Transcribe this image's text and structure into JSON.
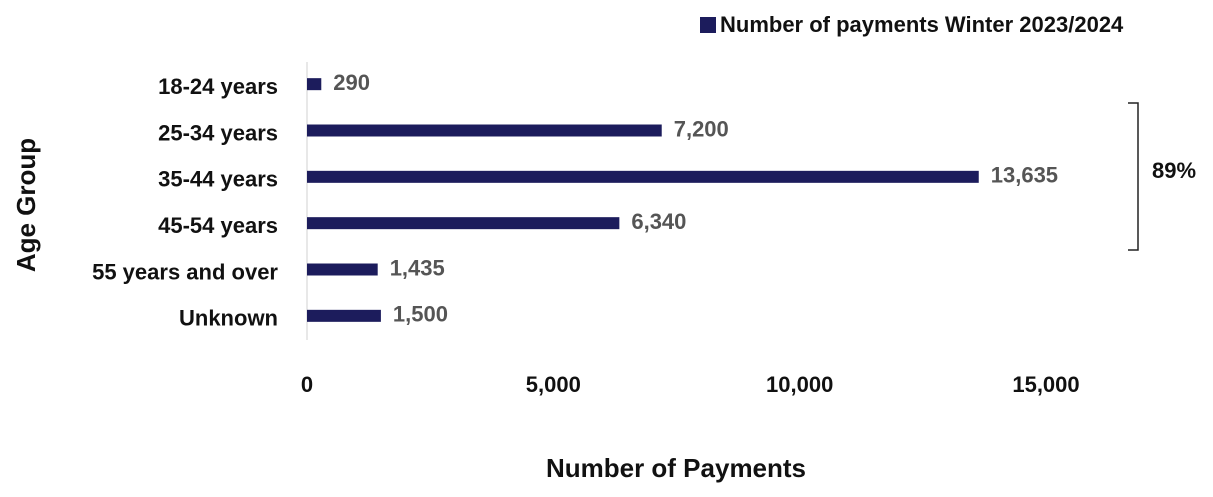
{
  "chart_data": {
    "type": "bar",
    "orientation": "horizontal",
    "legend": "Number of payments Winter 2023/2024",
    "xlabel": "Number of Payments",
    "ylabel": "Age Group",
    "categories": [
      "18-24 years",
      "25-34 years",
      "35-44 years",
      "45-54 years",
      "55 years and over",
      "Unknown"
    ],
    "values": [
      290,
      7200,
      13635,
      6340,
      1435,
      1500
    ],
    "value_labels": [
      "290",
      "7,200",
      "13,635",
      "6,340",
      "1,435",
      "1,500"
    ],
    "color": "#1c1c5c",
    "xlim": [
      0,
      15000
    ],
    "xticks": [
      0,
      {
        "value": 5000,
        "label": "5,000"
      },
      {
        "value": 10000,
        "label": "10,000"
      },
      {
        "value": 15000,
        "label": "15,000"
      }
    ],
    "annotation": "89%"
  }
}
